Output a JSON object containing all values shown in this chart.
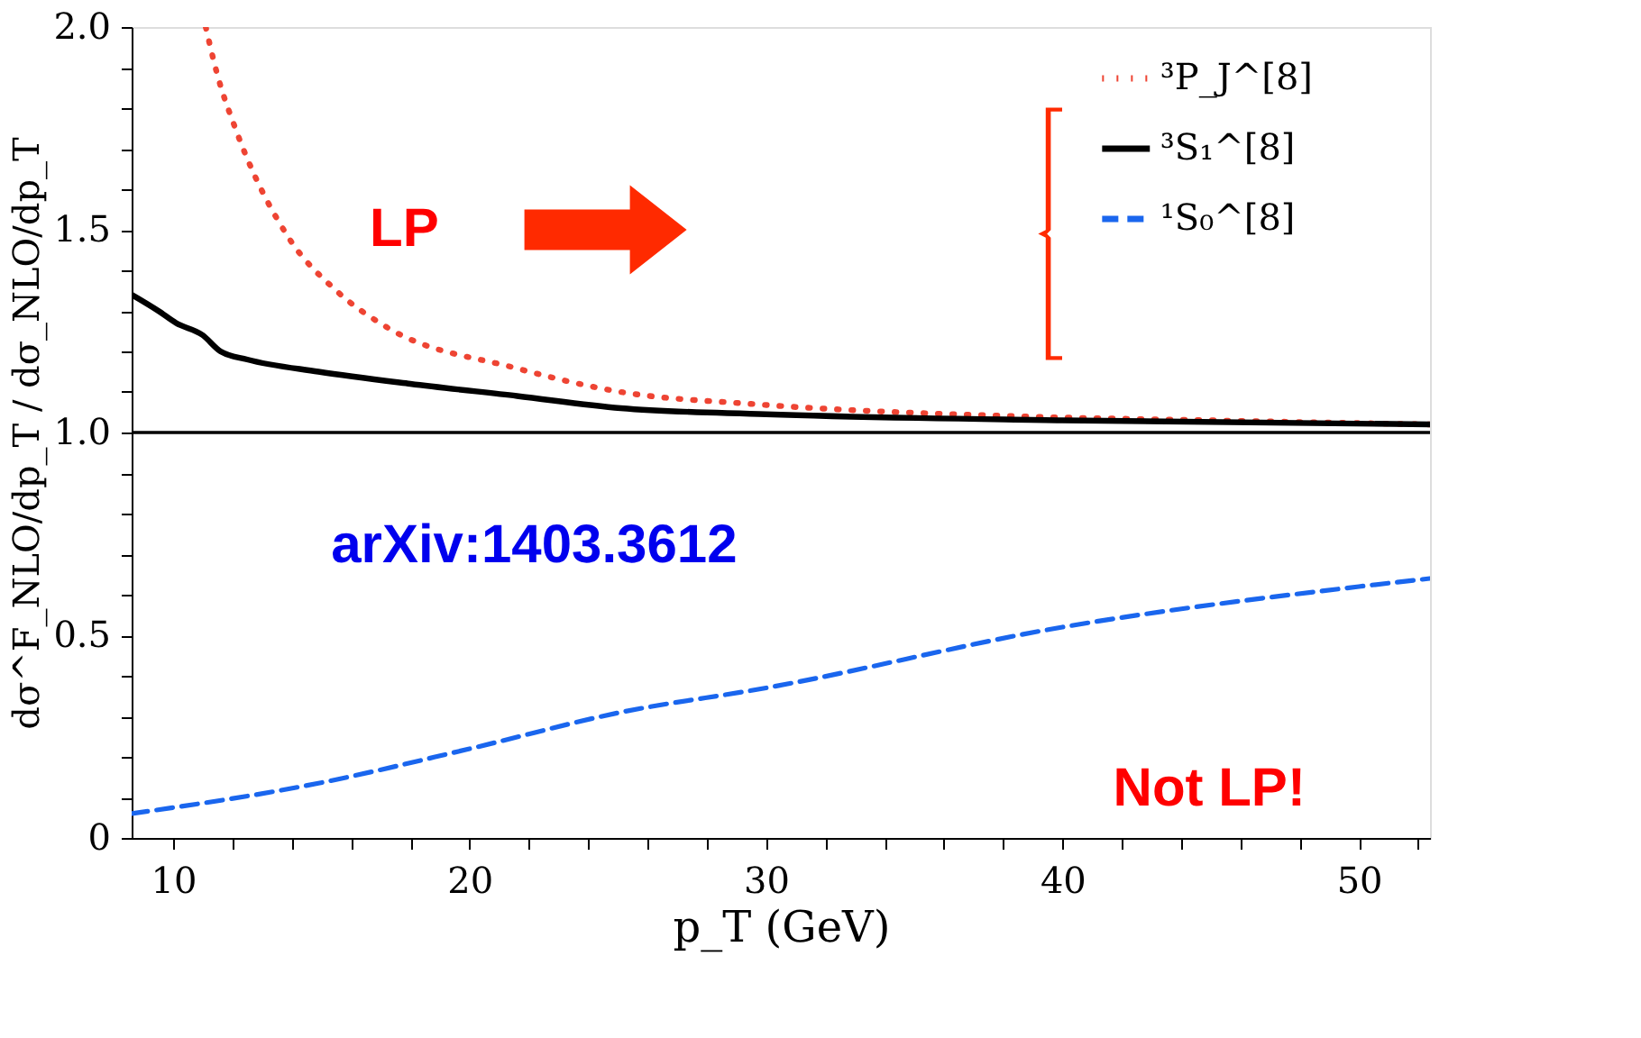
{
  "chart_data": {
    "type": "line",
    "xlabel": "p_T (GeV)",
    "ylabel": "dσ^F_NLO/dp_T / dσ_NLO/dp_T",
    "xlim": [
      8.6,
      52.4
    ],
    "xticks": [
      {
        "value": 10,
        "label": "10"
      },
      {
        "value": 12,
        "label": null
      },
      {
        "value": 14,
        "label": null
      },
      {
        "value": 16,
        "label": null
      },
      {
        "value": 18,
        "label": null
      },
      {
        "value": 20,
        "label": "20"
      },
      {
        "value": 22,
        "label": null
      },
      {
        "value": 24,
        "label": null
      },
      {
        "value": 26,
        "label": null
      },
      {
        "value": 28,
        "label": null
      },
      {
        "value": 30,
        "label": "30"
      },
      {
        "value": 32,
        "label": null
      },
      {
        "value": 34,
        "label": null
      },
      {
        "value": 36,
        "label": null
      },
      {
        "value": 38,
        "label": null
      },
      {
        "value": 40,
        "label": "40"
      },
      {
        "value": 42,
        "label": null
      },
      {
        "value": 44,
        "label": null
      },
      {
        "value": 46,
        "label": null
      },
      {
        "value": 48,
        "label": null
      },
      {
        "value": 50,
        "label": "50"
      },
      {
        "value": 52,
        "label": null
      }
    ],
    "ylim": [
      0,
      2
    ],
    "yticks": [
      {
        "value": 0,
        "label": "0"
      },
      {
        "value": 0.1,
        "label": null
      },
      {
        "value": 0.2,
        "label": null
      },
      {
        "value": 0.3,
        "label": null
      },
      {
        "value": 0.4,
        "label": null
      },
      {
        "value": 0.5,
        "label": "0.5"
      },
      {
        "value": 0.6,
        "label": null
      },
      {
        "value": 0.7,
        "label": null
      },
      {
        "value": 0.8,
        "label": null
      },
      {
        "value": 0.9,
        "label": null
      },
      {
        "value": 1,
        "label": "1.0"
      },
      {
        "value": 1.1,
        "label": null
      },
      {
        "value": 1.2,
        "label": null
      },
      {
        "value": 1.3,
        "label": null
      },
      {
        "value": 1.4,
        "label": null
      },
      {
        "value": 1.5,
        "label": "1.5"
      },
      {
        "value": 1.6,
        "label": null
      },
      {
        "value": 1.7,
        "label": null
      },
      {
        "value": 1.8,
        "label": null
      },
      {
        "value": 1.9,
        "label": null
      },
      {
        "value": 2,
        "label": "2.0"
      }
    ],
    "grid": false,
    "legend": "top right",
    "marker": "none",
    "ref_lines": [
      {
        "axis": "y",
        "value": 1,
        "color": "#000000",
        "line_style": "solid"
      }
    ],
    "annotations": [
      "LP",
      "arXiv:1403.3612",
      "Not LP!"
    ],
    "series": [
      {
        "name": "³P_J^[8]",
        "color": "#ee4433",
        "line_style": "dotted",
        "x": [
          11.1,
          11.5,
          12.1,
          13.9,
          15.5,
          17.2,
          21.5,
          25.1,
          29.6,
          38.5,
          45,
          52.4
        ],
        "values": [
          2.0,
          1.88,
          1.75,
          1.48,
          1.35,
          1.26,
          1.16,
          1.1,
          1.07,
          1.04,
          1.03,
          1.02
        ]
      },
      {
        "name": "³S₁^[8]",
        "color": "#000000",
        "line_style": "solid",
        "x": [
          8.6,
          9.5,
          10.1,
          11,
          11.6,
          12.5,
          14.9,
          18,
          21.6,
          25.1,
          30,
          40,
          52.4
        ],
        "values": [
          1.34,
          1.3,
          1.27,
          1.24,
          1.2,
          1.18,
          1.15,
          1.12,
          1.09,
          1.06,
          1.045,
          1.03,
          1.02
        ]
      },
      {
        "name": "¹S₀^[8]",
        "color": "#1a66ee",
        "line_style": "dashed",
        "x": [
          8.6,
          14.9,
          20,
          25.1,
          30,
          40,
          50,
          52.4
        ],
        "values": [
          0.06,
          0.135,
          0.22,
          0.31,
          0.37,
          0.52,
          0.62,
          0.64
        ]
      }
    ]
  }
}
